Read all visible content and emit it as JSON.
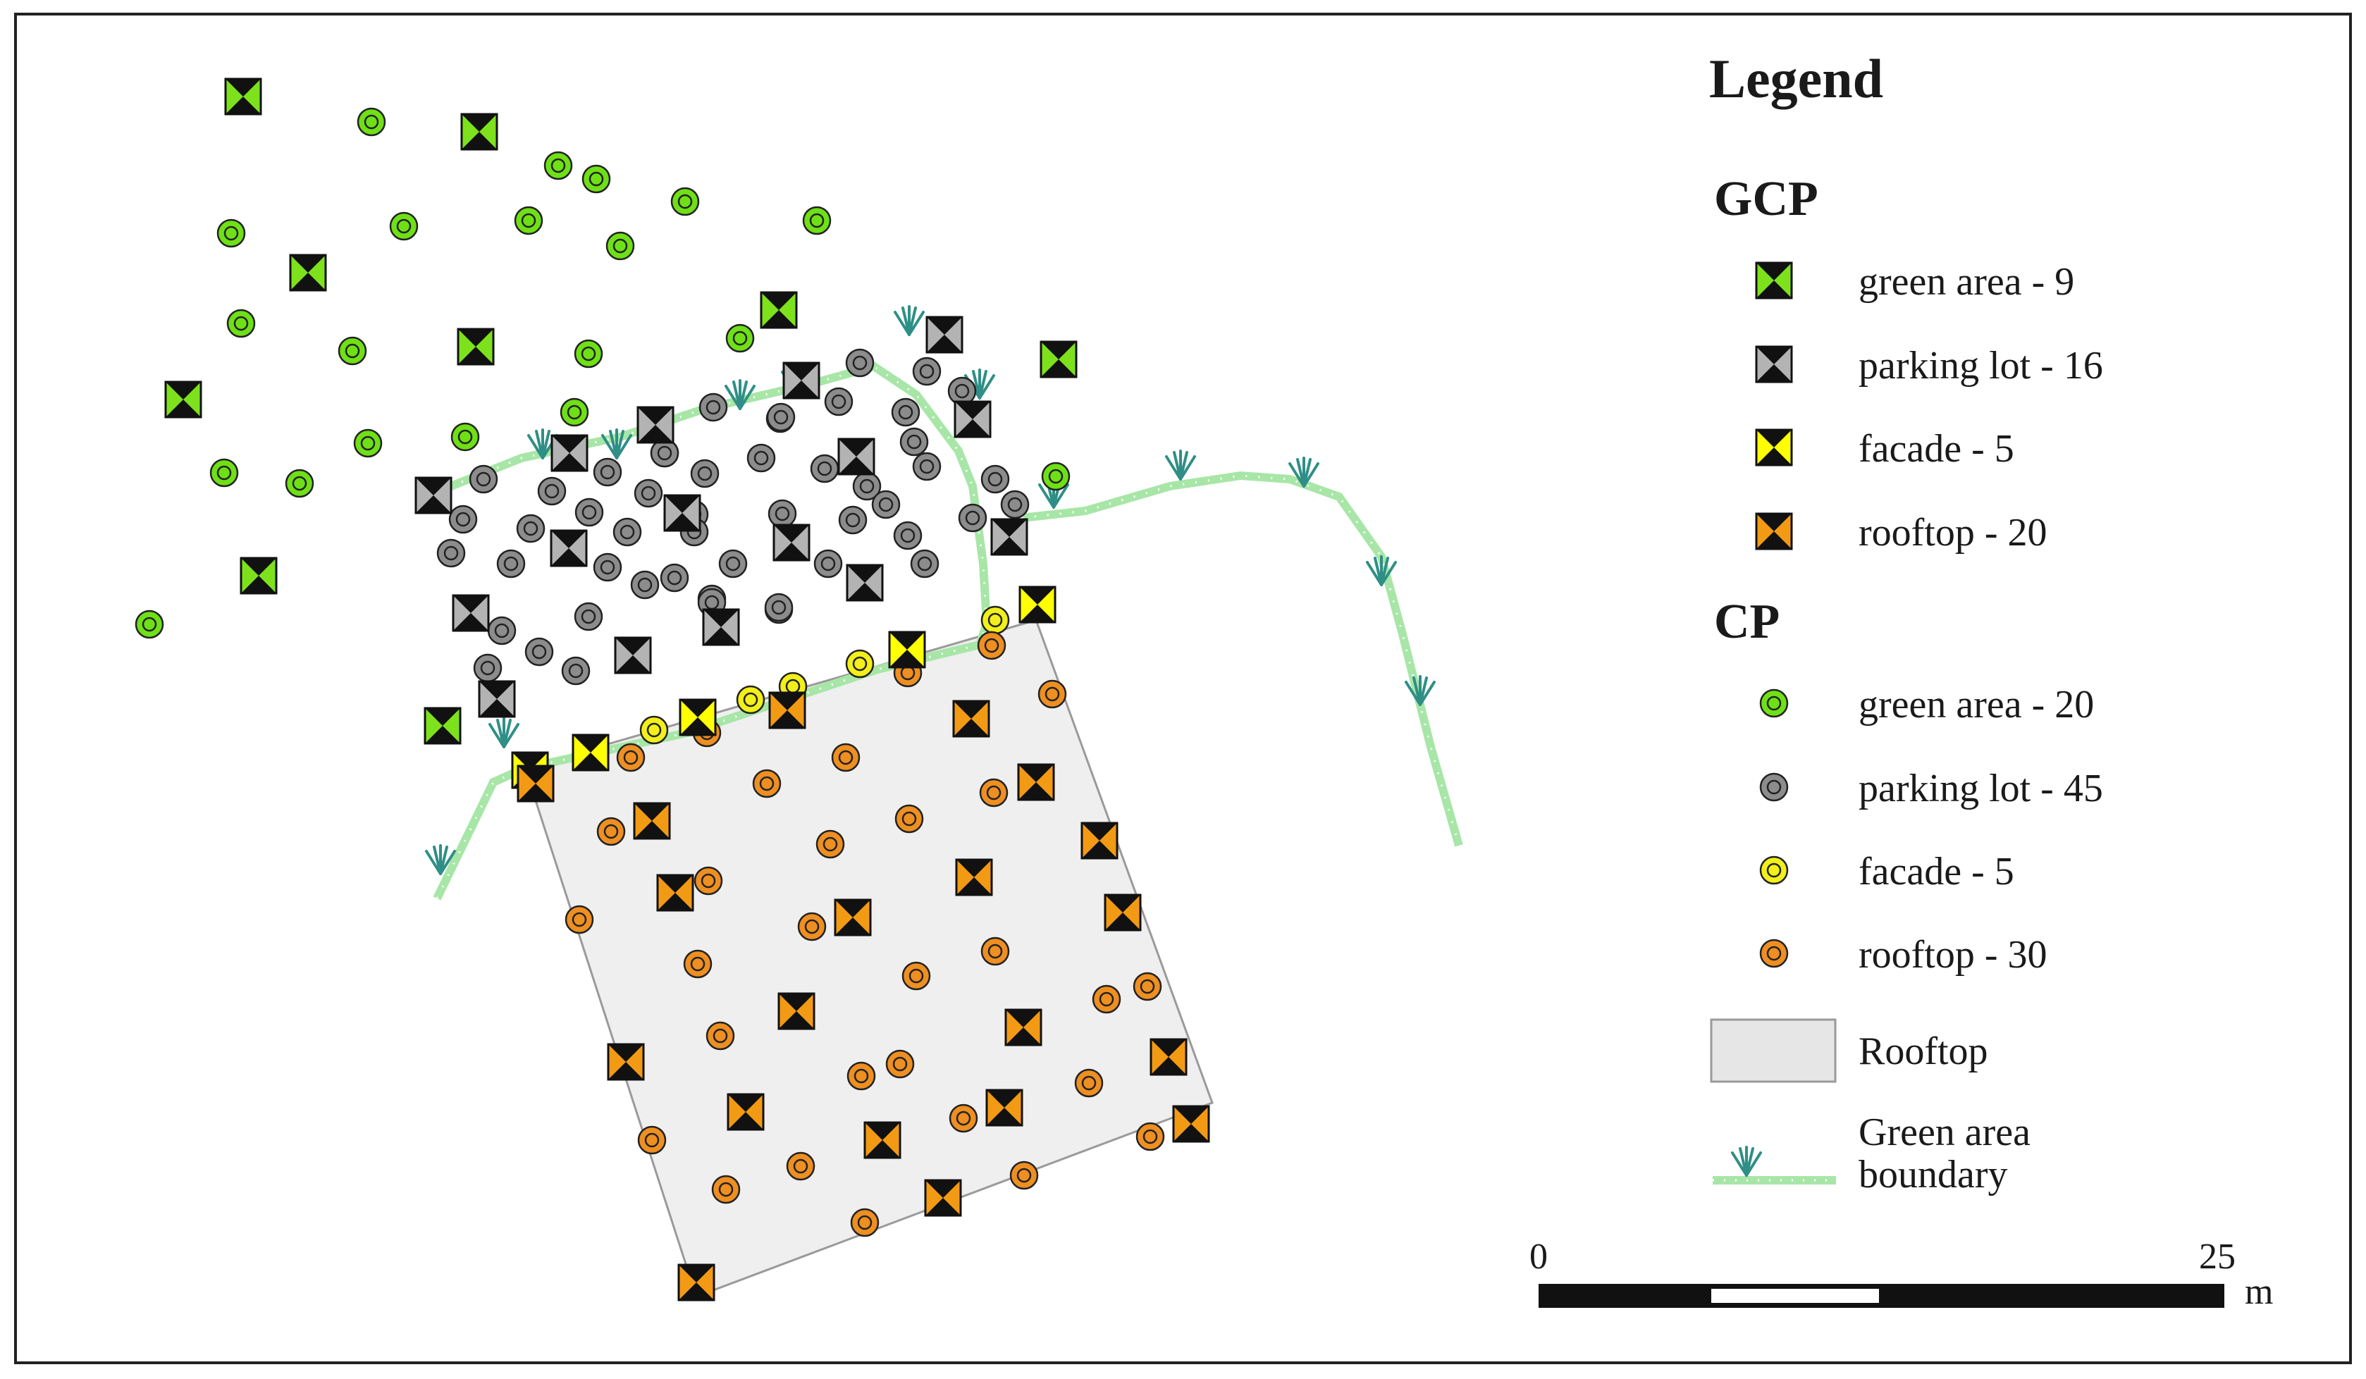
{
  "legend": {
    "title": "Legend",
    "gcp_heading": "GCP",
    "cp_heading": "CP",
    "gcp_items": [
      {
        "label": "green area - 9",
        "color": "#7de21c"
      },
      {
        "label": "parking lot - 16",
        "color": "#b3b3b3"
      },
      {
        "label": "facade - 5",
        "color": "#ffff00"
      },
      {
        "label": "rooftop - 20",
        "color": "#f39a14"
      }
    ],
    "cp_items": [
      {
        "label": "green area - 20",
        "color": "#6fe016"
      },
      {
        "label": "parking lot - 45",
        "color": "#8c8c8c"
      },
      {
        "label": "facade - 5",
        "color": "#f2ef1a"
      },
      {
        "label": "rooftop - 30",
        "color": "#ee8f22"
      }
    ],
    "rooftop_label": "Rooftop",
    "boundary_label_line1": "Green area",
    "boundary_label_line2": "boundary"
  },
  "scale_bar": {
    "start_label": "0",
    "end_label": "25",
    "unit": "m"
  },
  "colors": {
    "rooftop_fill": "#efefef",
    "rooftop_stroke": "#9a9a9a",
    "boundary": "#a8e6a8",
    "tuft": "#2f8f86",
    "frame": "#222222"
  },
  "icons": {
    "gcp": "hourglass-target-icon",
    "cp": "ring-point-icon",
    "boundary": "grass-tuft-icon"
  }
}
